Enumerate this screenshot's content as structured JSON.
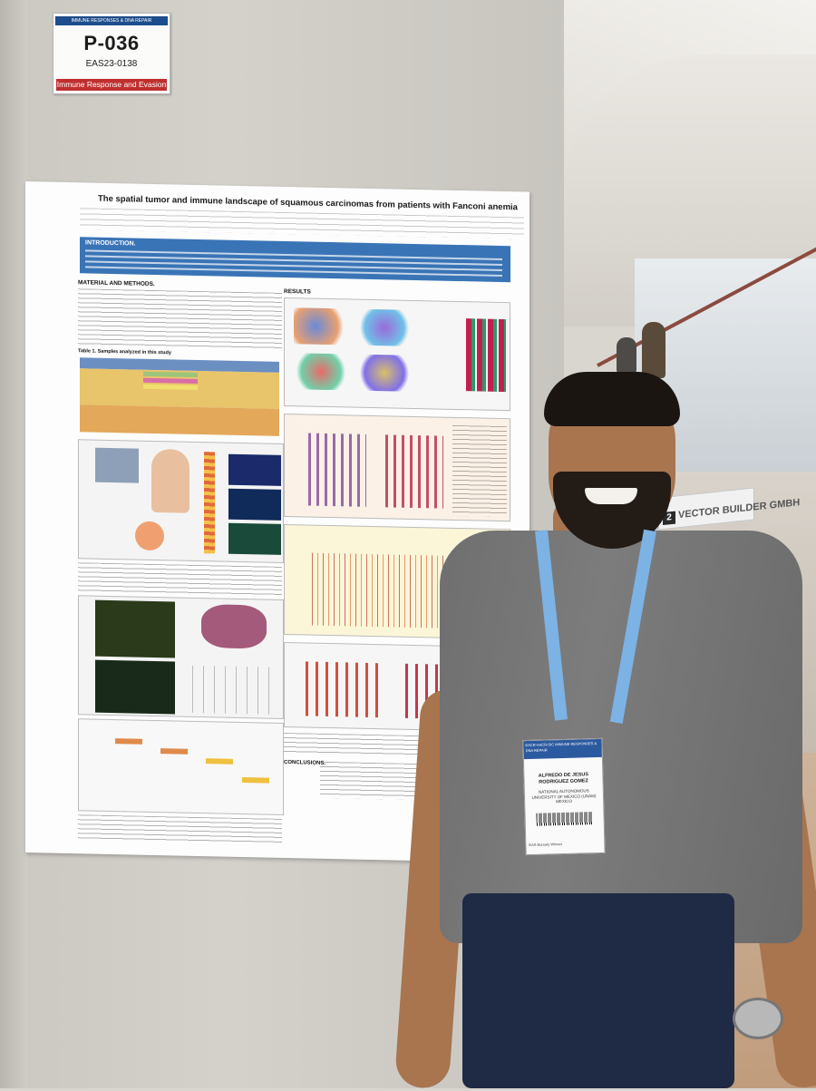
{
  "code_card": {
    "header": "IMMUNE RESPONSES & DNA REPAIR",
    "poster_code": "P-036",
    "abstract_id": "EAS23-0138",
    "topic": "Immune Response and Evasion"
  },
  "poster": {
    "title": "The spatial tumor and immune landscape of squamous carcinomas from patients with Fanconi anemia",
    "sections": {
      "introduction": "INTRODUCTION.",
      "methods": "MATERIAL AND METHODS.",
      "results": "RESULTS",
      "conclusions": "CONCLUSIONS."
    },
    "table_title": "Table 1. Samples analyzed in this study"
  },
  "sign": {
    "number": "2",
    "text": "VECTOR BUILDER GMBH"
  },
  "badge": {
    "header": "EACR-AACR-SIC IMMUNE RESPONSES & DNA REPAIR",
    "name": "ALFREDO DE JESUS RODRIGUEZ GOMEZ",
    "organization": "NATIONAL AUTONOMOUS UNIVERSITY OF MEXICO (UNAM)",
    "country": "MEXICO",
    "footer": "EAS Bursary Winner"
  },
  "colors": {
    "poster_band": "#2f6db3",
    "topic_red": "#c02f2f",
    "shirt": "#707070",
    "lanyard": "#7db2e5"
  }
}
